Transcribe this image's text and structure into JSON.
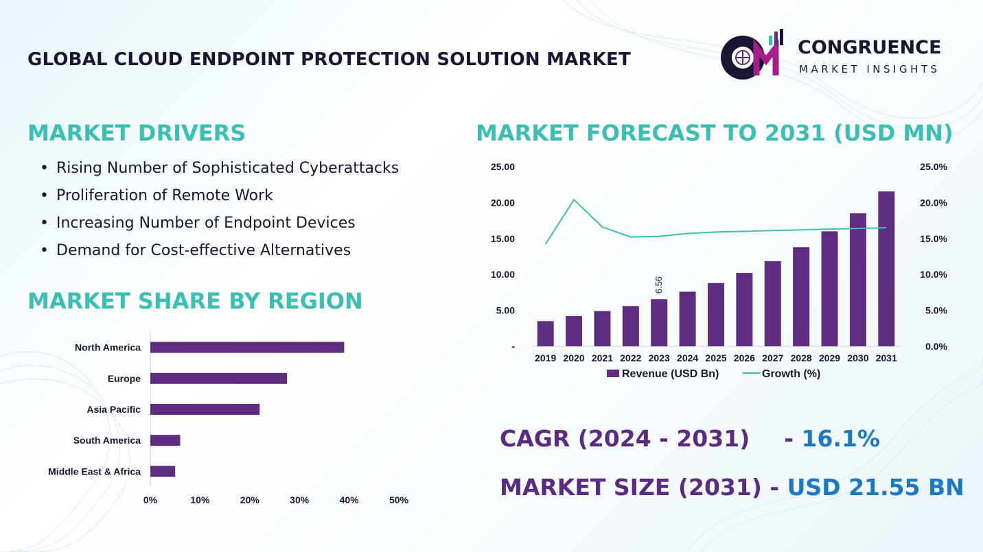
{
  "header": {
    "title": "GLOBAL CLOUD ENDPOINT PROTECTION SOLUTION MARKET",
    "logo": {
      "name": "CONGRUENCE",
      "subtitle": "MARKET INSIGHTS"
    }
  },
  "drivers": {
    "heading": "MARKET DRIVERS",
    "items": [
      "Rising Number of Sophisticated Cyberattacks",
      "Proliferation of Remote Work",
      "Increasing Number of Endpoint Devices",
      "Demand for Cost-effective Alternatives"
    ]
  },
  "region": {
    "heading": "MARKET SHARE BY REGION"
  },
  "forecast": {
    "heading": "MARKET FORECAST TO 2031 (USD MN)"
  },
  "kpis": {
    "cagr_label": "CAGR (2024 - 2031)",
    "cagr_sep": "-",
    "cagr_value": "16.1%",
    "size_label": "MARKET SIZE (2031)",
    "size_sep": "-",
    "size_value": "USD 21.55 BN"
  },
  "colors": {
    "purple": "#5e2d82",
    "teal": "#3bbfb3",
    "navy": "#1a1533",
    "blue": "#1b78c2",
    "kpi_label": "#5a2b82"
  },
  "chart_data": [
    {
      "type": "bar",
      "orientation": "horizontal",
      "categories": [
        "North America",
        "Europe",
        "Asia Pacific",
        "South America",
        "Middle East & Africa"
      ],
      "values": [
        39,
        27.5,
        22,
        6,
        5
      ],
      "xlim": [
        0,
        50
      ],
      "xticks": [
        "0%",
        "10%",
        "20%",
        "30%",
        "40%",
        "50%"
      ],
      "grid": false
    },
    {
      "type": "bar",
      "categories": [
        "2019",
        "2020",
        "2021",
        "2022",
        "2023",
        "2024",
        "2025",
        "2026",
        "2027",
        "2028",
        "2029",
        "2030",
        "2031"
      ],
      "series": [
        {
          "name": "Revenue (USD Bn)",
          "type": "bar",
          "axis": "left",
          "values": [
            3.5,
            4.2,
            4.9,
            5.6,
            6.56,
            7.6,
            8.8,
            10.2,
            11.85,
            13.8,
            16.0,
            18.5,
            21.55
          ]
        },
        {
          "name": "Growth (%)",
          "type": "line",
          "axis": "right",
          "values": [
            14.2,
            20.4,
            16.6,
            15.2,
            15.3,
            15.7,
            15.9,
            16.0,
            16.1,
            16.2,
            16.3,
            16.4,
            16.5
          ]
        }
      ],
      "ylim": [
        0,
        25
      ],
      "yticks_left": [
        "-",
        "5.00",
        "10.00",
        "15.00",
        "20.00",
        "25.00"
      ],
      "ylim_right": [
        0,
        25
      ],
      "yticks_right": [
        "0.0%",
        "5.0%",
        "10.0%",
        "15.0%",
        "20.0%",
        "25.0%"
      ],
      "data_labels": [
        {
          "category": "2023",
          "text": "6.56"
        }
      ],
      "legend": "bottom",
      "grid": false
    }
  ]
}
